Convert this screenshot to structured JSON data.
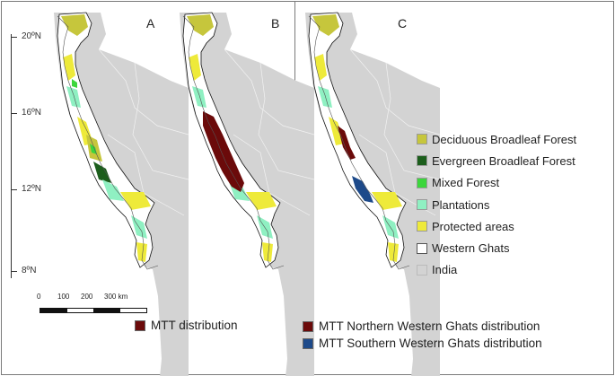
{
  "latitude_labels": [
    "20ºN",
    "16ºN",
    "12ºN",
    "8ºN"
  ],
  "panels": [
    "A",
    "B",
    "C"
  ],
  "legend": [
    {
      "label": "Deciduous Broadleaf Forest",
      "color": "#c6c63c"
    },
    {
      "label": "Evergreen Broadleaf Forest",
      "color": "#1c5e1c"
    },
    {
      "label": "Mixed Forest",
      "color": "#3cd63c"
    },
    {
      "label": "Plantations",
      "color": "#8ff0c2"
    },
    {
      "label": "Protected areas",
      "color": "#eeea3a"
    },
    {
      "label": "Western Ghats",
      "color": "#ffffff"
    },
    {
      "label": "India",
      "color": "#d3d3d3"
    }
  ],
  "scale_bar": {
    "ticks": [
      "0",
      "100",
      "200",
      "300 km"
    ]
  },
  "distributions": {
    "panel_b": [
      {
        "label": "MTT distribution",
        "color": "#6b0a0a"
      }
    ],
    "panel_c": [
      {
        "label": "MTT Northern Western Ghats distribution",
        "color": "#6b0a0a"
      },
      {
        "label": "MTT Southern Western Ghats distribution",
        "color": "#1d4a8a"
      }
    ]
  },
  "colors": {
    "land": "#d3d3d3",
    "border": "#7a7a7a",
    "outline": "#111111"
  }
}
